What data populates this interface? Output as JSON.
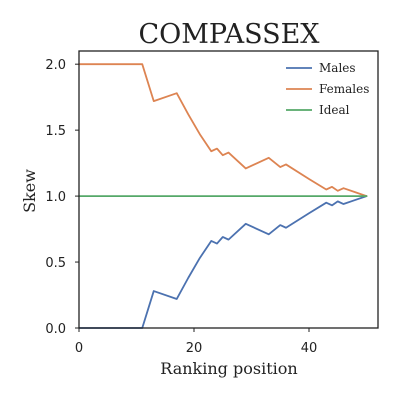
{
  "chart_data": {
    "type": "line",
    "title": "COMPASSEX",
    "xlabel": "Ranking position",
    "ylabel": "Skew",
    "xlim": [
      0,
      52
    ],
    "ylim": [
      0,
      2.1
    ],
    "x_ticks": [
      0,
      20,
      40
    ],
    "y_ticks": [
      0.0,
      0.5,
      1.0,
      1.5,
      2.0
    ],
    "x_tick_labels": [
      "0",
      "20",
      "40"
    ],
    "y_tick_labels": [
      "0.0",
      "0.5",
      "1.0",
      "1.5",
      "2.0"
    ],
    "grid": false,
    "legend_position": "top-right",
    "series": [
      {
        "name": "Males",
        "color": "#4c72b0",
        "points": [
          [
            0,
            0
          ],
          [
            11,
            0
          ],
          [
            13,
            0.28
          ],
          [
            17,
            0.22
          ],
          [
            19,
            0.38
          ],
          [
            21,
            0.53
          ],
          [
            23,
            0.66
          ],
          [
            24,
            0.64
          ],
          [
            25,
            0.69
          ],
          [
            26,
            0.67
          ],
          [
            29,
            0.79
          ],
          [
            33,
            0.71
          ],
          [
            35,
            0.78
          ],
          [
            36,
            0.76
          ],
          [
            40,
            0.87
          ],
          [
            43,
            0.95
          ],
          [
            44,
            0.93
          ],
          [
            45,
            0.96
          ],
          [
            46,
            0.94
          ],
          [
            48,
            0.97
          ],
          [
            50,
            1.0
          ]
        ]
      },
      {
        "name": "Females",
        "color": "#dd8452",
        "points": [
          [
            0,
            2.0
          ],
          [
            11,
            2.0
          ],
          [
            13,
            1.72
          ],
          [
            17,
            1.78
          ],
          [
            19,
            1.62
          ],
          [
            21,
            1.47
          ],
          [
            23,
            1.34
          ],
          [
            24,
            1.36
          ],
          [
            25,
            1.31
          ],
          [
            26,
            1.33
          ],
          [
            29,
            1.21
          ],
          [
            33,
            1.29
          ],
          [
            35,
            1.22
          ],
          [
            36,
            1.24
          ],
          [
            40,
            1.13
          ],
          [
            43,
            1.05
          ],
          [
            44,
            1.07
          ],
          [
            45,
            1.04
          ],
          [
            46,
            1.06
          ],
          [
            48,
            1.03
          ],
          [
            50,
            1.0
          ]
        ]
      },
      {
        "name": "Ideal",
        "color": "#55a868",
        "points": [
          [
            0,
            1.0
          ],
          [
            50,
            1.0
          ]
        ]
      }
    ]
  }
}
